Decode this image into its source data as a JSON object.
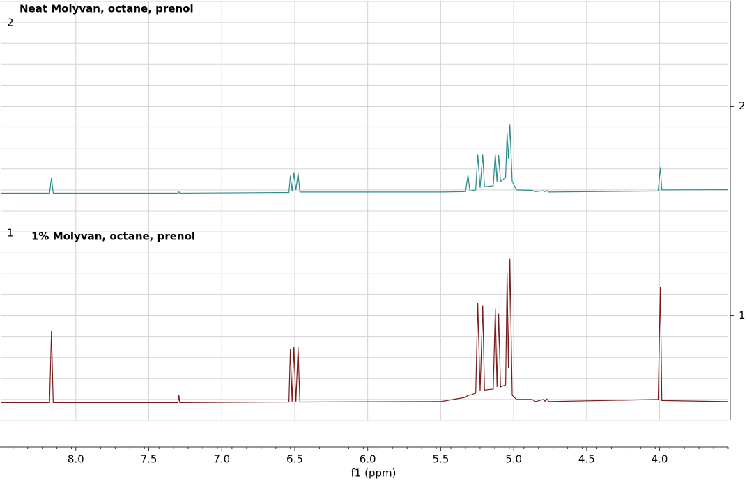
{
  "chart_data": {
    "type": "line",
    "x_label": "f1 (ppm)",
    "xlim": [
      8.51,
      3.53
    ],
    "ylim": [
      0.5,
      2.5
    ],
    "grid": true,
    "xticks": [
      {
        "value": 8,
        "label": "8.0"
      },
      7.5,
      {
        "value": 7,
        "label": "7.0"
      },
      6.5,
      {
        "value": 6,
        "label": "6.0"
      },
      5.5,
      {
        "value": 5,
        "label": "5.0"
      },
      4.5,
      {
        "value": 4,
        "label": "4.0"
      }
    ],
    "yticks": [
      1,
      2
    ],
    "x": [
      8.51,
      8.18,
      8.167,
      8.155,
      7.3,
      7.294,
      7.288,
      6.54,
      6.53,
      6.518,
      6.506,
      6.492,
      6.477,
      6.465,
      5.5,
      5.33,
      5.313,
      5.3,
      5.26,
      5.246,
      5.23,
      5.212,
      5.2,
      5.14,
      5.126,
      5.114,
      5.103,
      5.09,
      5.055,
      5.045,
      5.036,
      5.026,
      5.01,
      4.98,
      4.874,
      4.85,
      4.797,
      4.785,
      4.773,
      4.76,
      4.01,
      3.995,
      3.985,
      3.53
    ],
    "series": [
      {
        "name": "Neat Molyvan, octane, prenol",
        "label": "2",
        "color": "#2a8c8c",
        "values": [
          1.585,
          1.585,
          1.658,
          1.585,
          1.585,
          1.591,
          1.585,
          1.588,
          1.668,
          1.595,
          1.684,
          1.6,
          1.681,
          1.59,
          1.59,
          1.592,
          1.671,
          1.595,
          1.6,
          1.771,
          1.61,
          1.771,
          1.615,
          1.62,
          1.771,
          1.64,
          1.768,
          1.64,
          1.66,
          1.874,
          1.75,
          1.914,
          1.64,
          1.6,
          1.598,
          1.592,
          1.596,
          1.592,
          1.597,
          1.59,
          1.595,
          1.708,
          1.6,
          1.601
        ]
      },
      {
        "name": "1% Molyvan, octane, prenol",
        "label": "1",
        "color": "#7b1c1c",
        "values": [
          0.585,
          0.585,
          0.927,
          0.585,
          0.585,
          0.621,
          0.585,
          0.588,
          0.84,
          0.59,
          0.85,
          0.59,
          0.85,
          0.588,
          0.59,
          0.61,
          0.62,
          0.62,
          0.63,
          1.06,
          0.64,
          1.05,
          0.645,
          0.65,
          1.033,
          0.66,
          1.01,
          0.66,
          0.67,
          1.203,
          0.75,
          1.272,
          0.62,
          0.6,
          0.6,
          0.59,
          0.6,
          0.592,
          0.602,
          0.59,
          0.6,
          1.136,
          0.595,
          0.59
        ]
      }
    ]
  }
}
